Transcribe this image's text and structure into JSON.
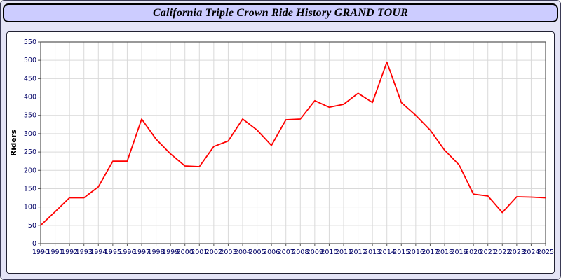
{
  "title": "California Triple Crown Ride History GRAND TOUR",
  "colors": {
    "page_background": "#e4e4f6",
    "title_bar_background": "#ccccff",
    "plot_background": "#ffffff",
    "gridline": "#d9d9d9",
    "frame": "#555555",
    "tick_label": "#000066",
    "line": "#ff0000",
    "axis_label": "#000000"
  },
  "chart_data": {
    "type": "line",
    "title": "California Triple Crown Ride History GRAND TOUR",
    "xlabel": "",
    "ylabel": "Riders",
    "ylim": [
      0,
      550
    ],
    "ytick_step": 50,
    "grid": true,
    "legend": "none",
    "x": [
      1990,
      1991,
      1992,
      1993,
      1994,
      1995,
      1996,
      1997,
      1998,
      1999,
      2000,
      2001,
      2002,
      2003,
      2004,
      2005,
      2006,
      2007,
      2008,
      2009,
      2010,
      2011,
      2012,
      2013,
      2014,
      2015,
      2016,
      2017,
      2018,
      2019,
      2020,
      2021,
      2022,
      2023,
      2024,
      2025
    ],
    "values": [
      50,
      87,
      125,
      125,
      155,
      225,
      225,
      340,
      285,
      245,
      212,
      210,
      265,
      280,
      340,
      310,
      268,
      338,
      340,
      390,
      372,
      380,
      410,
      385,
      495,
      385,
      350,
      310,
      255,
      215,
      135,
      130,
      85,
      128,
      127,
      125
    ]
  }
}
